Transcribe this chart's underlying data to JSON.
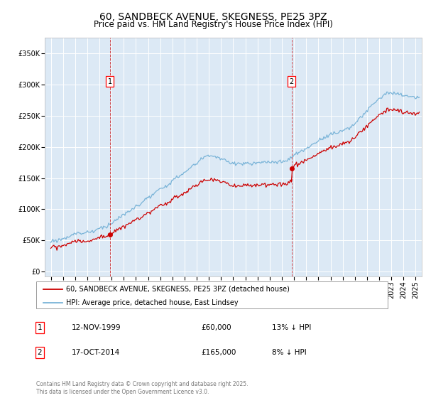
{
  "title": "60, SANDBECK AVENUE, SKEGNESS, PE25 3PZ",
  "subtitle": "Price paid vs. HM Land Registry's House Price Index (HPI)",
  "title_fontsize": 10,
  "subtitle_fontsize": 8.5,
  "plot_bg_color": "#dce9f5",
  "hpi_color": "#7ab4d8",
  "price_color": "#cc0000",
  "vline_color": "#cc0000",
  "yticks": [
    0,
    50000,
    100000,
    150000,
    200000,
    250000,
    300000,
    350000
  ],
  "ylim": [
    -8000,
    375000
  ],
  "xlim_start": 1994.5,
  "xlim_end": 2025.5,
  "marker1_x": 1999.87,
  "marker1_y": 60000,
  "marker1_label": "1",
  "marker2_x": 2014.8,
  "marker2_y": 165000,
  "marker2_label": "2",
  "legend_line1": "60, SANDBECK AVENUE, SKEGNESS, PE25 3PZ (detached house)",
  "legend_line2": "HPI: Average price, detached house, East Lindsey",
  "table_row1": [
    "1",
    "12-NOV-1999",
    "£60,000",
    "13% ↓ HPI"
  ],
  "table_row2": [
    "2",
    "17-OCT-2014",
    "£165,000",
    "8% ↓ HPI"
  ],
  "footer": "Contains HM Land Registry data © Crown copyright and database right 2025.\nThis data is licensed under the Open Government Licence v3.0.",
  "grid_color": "#ffffff",
  "tick_label_fontsize": 7
}
